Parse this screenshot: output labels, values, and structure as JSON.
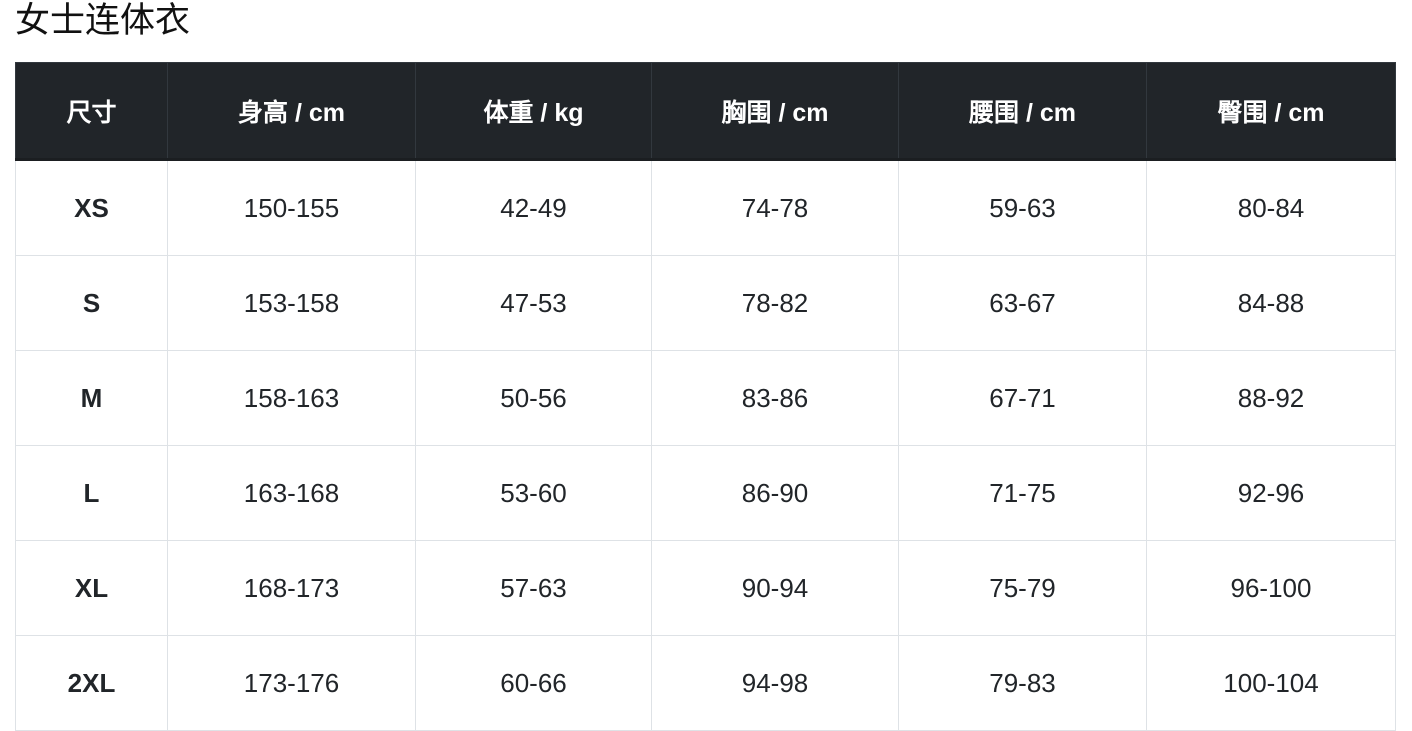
{
  "title": "女士连体衣",
  "table": {
    "headers": [
      "尺寸",
      "身高 / cm",
      "体重 / kg",
      "胸围 / cm",
      "腰围 / cm",
      "臀围 / cm"
    ],
    "rows": [
      [
        "XS",
        "150-155",
        "42-49",
        "74-78",
        "59-63",
        "80-84"
      ],
      [
        "S",
        "153-158",
        "47-53",
        "78-82",
        "63-67",
        "84-88"
      ],
      [
        "M",
        "158-163",
        "50-56",
        "83-86",
        "67-71",
        "88-92"
      ],
      [
        "L",
        "163-168",
        "53-60",
        "86-90",
        "71-75",
        "92-96"
      ],
      [
        "XL",
        "168-173",
        "57-63",
        "90-94",
        "75-79",
        "96-100"
      ],
      [
        "2XL",
        "173-176",
        "60-66",
        "94-98",
        "79-83",
        "100-104"
      ]
    ]
  },
  "colors": {
    "header_bg": "#212529",
    "border": "#dee2e6"
  }
}
